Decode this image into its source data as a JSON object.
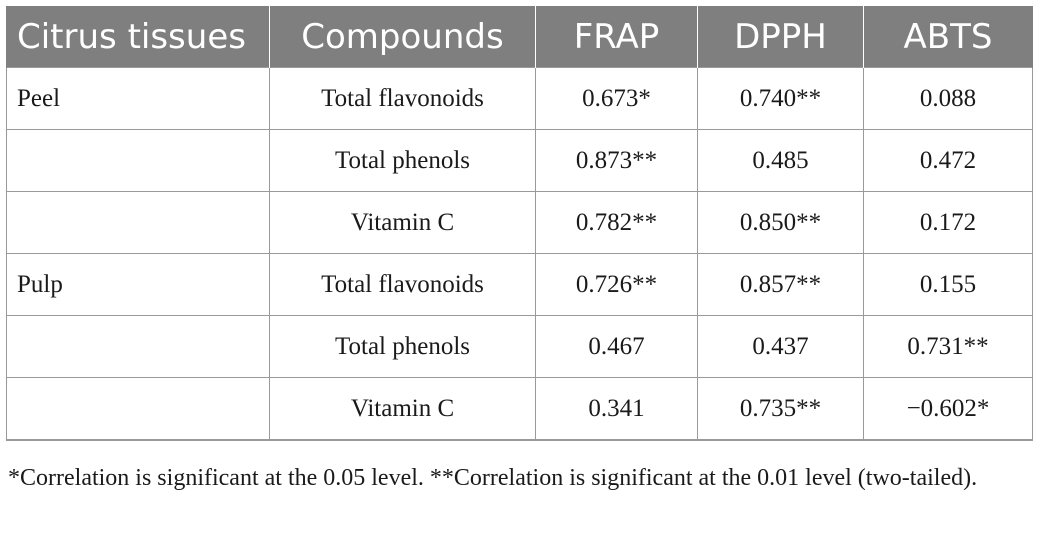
{
  "table": {
    "headers": [
      "Citrus tissues",
      "Compounds",
      "FRAP",
      "DPPH",
      "ABTS"
    ],
    "rows": [
      {
        "tissue": "Peel",
        "compound": "Total flavonoids",
        "frap": "0.673*",
        "dpph": "0.740**",
        "abts": "0.088"
      },
      {
        "tissue": "",
        "compound": "Total phenols",
        "frap": "0.873**",
        "dpph": "0.485",
        "abts": "0.472"
      },
      {
        "tissue": "",
        "compound": "Vitamin C",
        "frap": "0.782**",
        "dpph": "0.850**",
        "abts": "0.172"
      },
      {
        "tissue": "Pulp",
        "compound": "Total flavonoids",
        "frap": "0.726**",
        "dpph": "0.857**",
        "abts": "0.155"
      },
      {
        "tissue": "",
        "compound": "Total phenols",
        "frap": "0.467",
        "dpph": "0.437",
        "abts": "0.731**"
      },
      {
        "tissue": "",
        "compound": "Vitamin C",
        "frap": "0.341",
        "dpph": "0.735**",
        "abts": "−0.602*"
      }
    ]
  },
  "footnote": "*Correlation is significant at the 0.05 level. **Correlation is significant at the 0.01 level (two-tailed)."
}
